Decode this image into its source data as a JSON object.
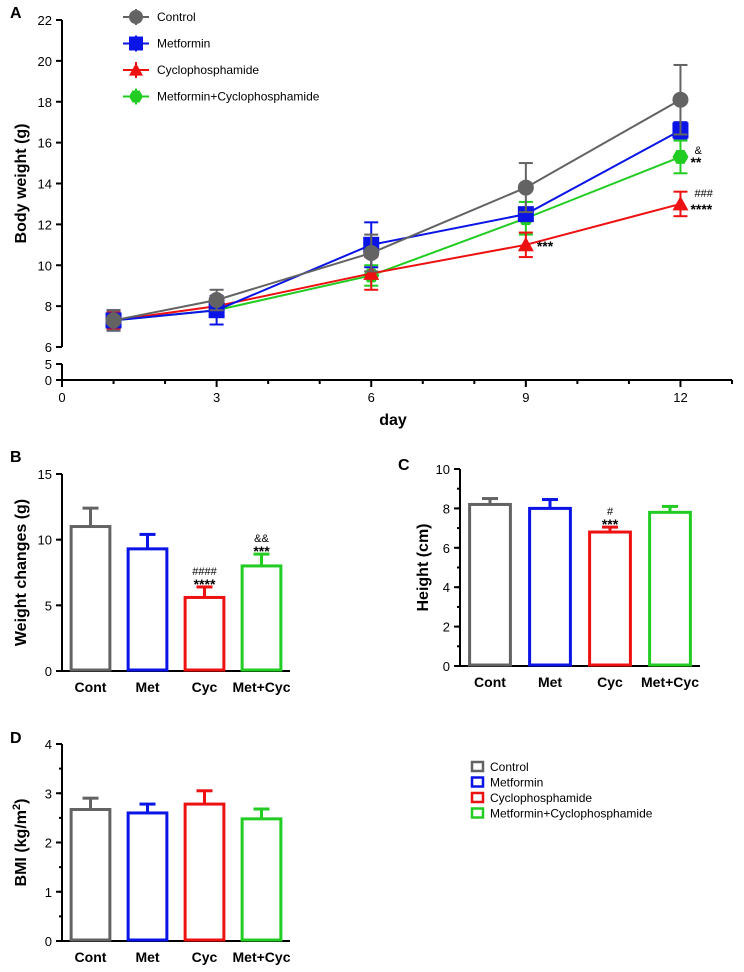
{
  "colors": {
    "control": "#636363",
    "metformin": "#0a14e6",
    "cyclophosphamide": "#ee1111",
    "met_cyc": "#22cc22"
  },
  "chart_data": [
    {
      "panel": "A",
      "type": "line",
      "xlabel": "day",
      "ylabel": "Body weight (g)",
      "x": [
        1,
        3,
        6,
        9,
        12
      ],
      "x_ticks": [
        "0",
        "3",
        "6",
        "9",
        "12"
      ],
      "y_ticks_upper": [
        "6",
        "8",
        "10",
        "12",
        "14",
        "16",
        "18",
        "20",
        "22"
      ],
      "y_ticks_lower": [
        "0",
        "5"
      ],
      "ylim_upper": [
        6,
        22
      ],
      "ylim_lower": [
        0,
        5
      ],
      "xlim": [
        0,
        13
      ],
      "series": [
        {
          "name": "Control",
          "values": [
            7.3,
            8.3,
            10.6,
            13.8,
            18.1
          ],
          "err": [
            0.5,
            0.5,
            0.9,
            1.2,
            1.7
          ],
          "color_key": "control",
          "marker": "circle"
        },
        {
          "name": "Metformin",
          "values": [
            7.3,
            7.8,
            11.0,
            12.5,
            16.6
          ],
          "err": [
            0.5,
            0.7,
            1.1,
            0.3,
            0.4
          ],
          "color_key": "metformin",
          "marker": "square"
        },
        {
          "name": "Cyclophosphamide",
          "values": [
            7.3,
            8.0,
            9.6,
            11.0,
            13.0
          ],
          "err": [
            0.4,
            0.4,
            0.8,
            0.6,
            0.6
          ],
          "color_key": "cyclophosphamide",
          "marker": "triangle"
        },
        {
          "name": "Metformin+Cyclophosphamide",
          "values": [
            7.3,
            7.8,
            9.5,
            12.3,
            15.3
          ],
          "err": [
            0.4,
            0.3,
            0.5,
            0.8,
            0.8
          ],
          "color_key": "met_cyc",
          "marker": "hexagon"
        }
      ],
      "annotations": [
        {
          "text": "***",
          "x": 9,
          "series": "Cyclophosphamide",
          "small": false
        },
        {
          "text": "&",
          "x": 12,
          "series": "Metformin+Cyclophosphamide",
          "small": true
        },
        {
          "text": "**",
          "x": 12,
          "series": "Metformin+Cyclophosphamide",
          "small": false
        },
        {
          "text": "###",
          "x": 12,
          "series": "Cyclophosphamide",
          "small": true
        },
        {
          "text": "****",
          "x": 12,
          "series": "Cyclophosphamide",
          "small": false
        }
      ]
    },
    {
      "panel": "B",
      "type": "bar",
      "ylabel": "Weight changes (g)",
      "categories": [
        "Cont",
        "Met",
        "Cyc",
        "Met+Cyc"
      ],
      "values": [
        11.0,
        9.3,
        5.6,
        8.0
      ],
      "err": [
        1.4,
        1.1,
        0.8,
        0.9
      ],
      "ylim": [
        0,
        15
      ],
      "y_ticks": [
        "0",
        "5",
        "10",
        "15"
      ],
      "annotations": [
        {
          "text": "####",
          "index": 2,
          "small": true
        },
        {
          "text": "****",
          "index": 2,
          "small": false
        },
        {
          "text": "&&",
          "index": 3,
          "small": true
        },
        {
          "text": "***",
          "index": 3,
          "small": false
        }
      ]
    },
    {
      "panel": "C",
      "type": "bar",
      "ylabel": "Height (cm)",
      "categories": [
        "Cont",
        "Met",
        "Cyc",
        "Met+Cyc"
      ],
      "values": [
        8.2,
        8.0,
        6.8,
        7.8
      ],
      "err": [
        0.3,
        0.45,
        0.25,
        0.3
      ],
      "ylim": [
        0,
        10
      ],
      "y_ticks": [
        "0",
        "2",
        "4",
        "6",
        "8",
        "10"
      ],
      "annotations": [
        {
          "text": "#",
          "index": 2,
          "small": true
        },
        {
          "text": "***",
          "index": 2,
          "small": false
        }
      ]
    },
    {
      "panel": "D",
      "type": "bar",
      "ylabel": "BMI (kg/m",
      "ylabel_sup": "2",
      "ylabel_close": ")",
      "categories": [
        "Cont",
        "Met",
        "Cyc",
        "Met+Cyc"
      ],
      "values": [
        2.67,
        2.6,
        2.78,
        2.48
      ],
      "err": [
        0.23,
        0.18,
        0.27,
        0.2
      ],
      "ylim": [
        0,
        4
      ],
      "y_ticks": [
        "0",
        "1",
        "2",
        "3",
        "4"
      ],
      "annotations": []
    }
  ],
  "legend_d": [
    "Control",
    "Metformin",
    "Cyclophosphamide",
    "Metformin+Cyclophosphamide"
  ]
}
